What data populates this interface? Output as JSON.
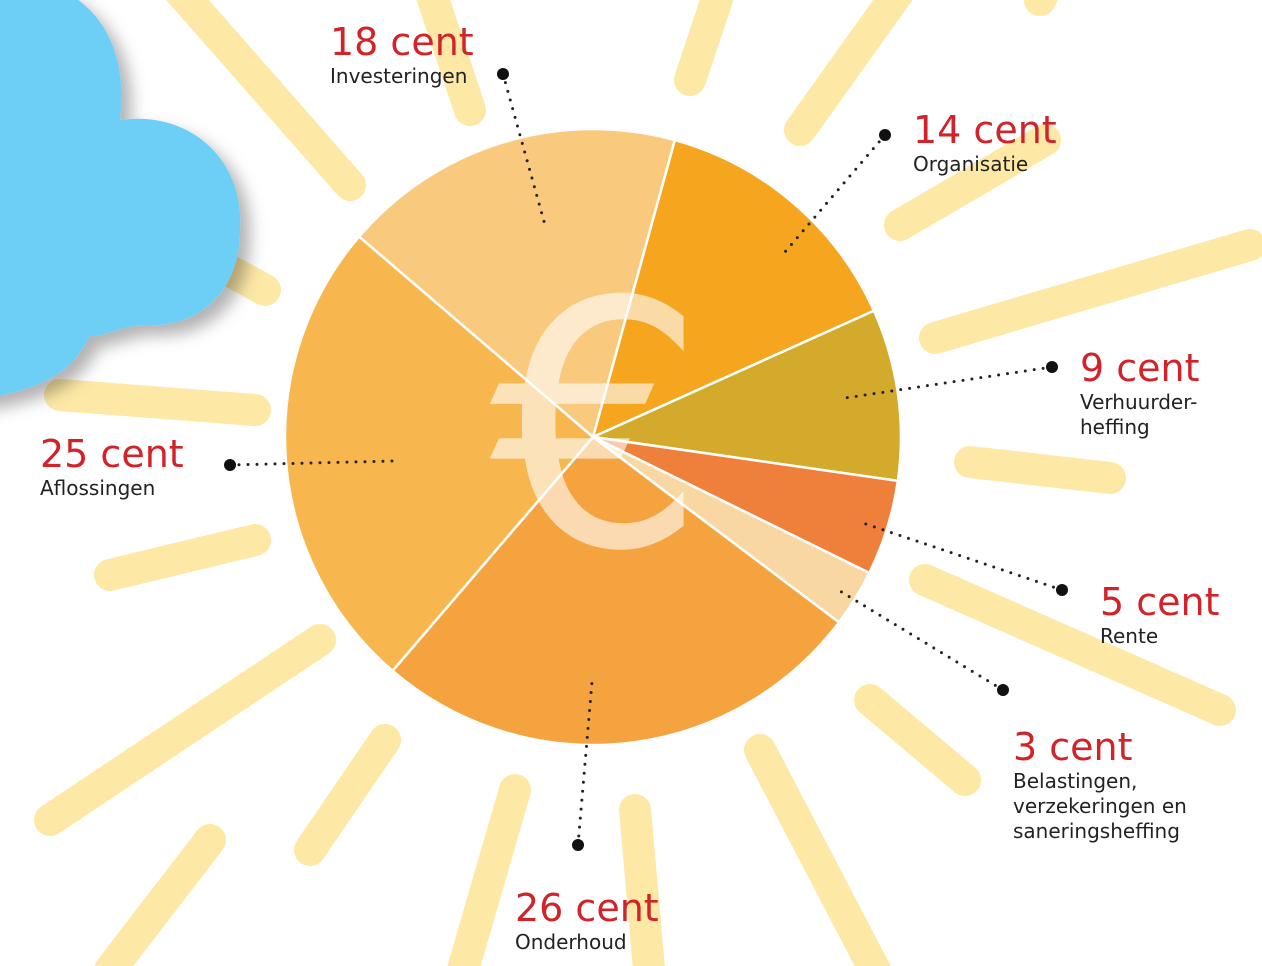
{
  "chart_data": {
    "type": "pie",
    "center_symbol": "€",
    "categories": [
      "Organisatie",
      "Verhuurder-heffing",
      "Rente",
      "Belastingen, verzekeringen en saneringsheffing",
      "Onderhoud",
      "Aflossingen",
      "Investeringen"
    ],
    "values": [
      14,
      9,
      5,
      3,
      26,
      25,
      18
    ],
    "value_labels": [
      "14 cent",
      "9 cent",
      "5 cent",
      "3 cent",
      "26 cent",
      "25 cent",
      "18 cent"
    ],
    "colors": [
      "#f5a51e",
      "#d4aa2c",
      "#ef803b",
      "#f9d7a2",
      "#f5a33f",
      "#f8b74e",
      "#f9c97d"
    ]
  }
}
